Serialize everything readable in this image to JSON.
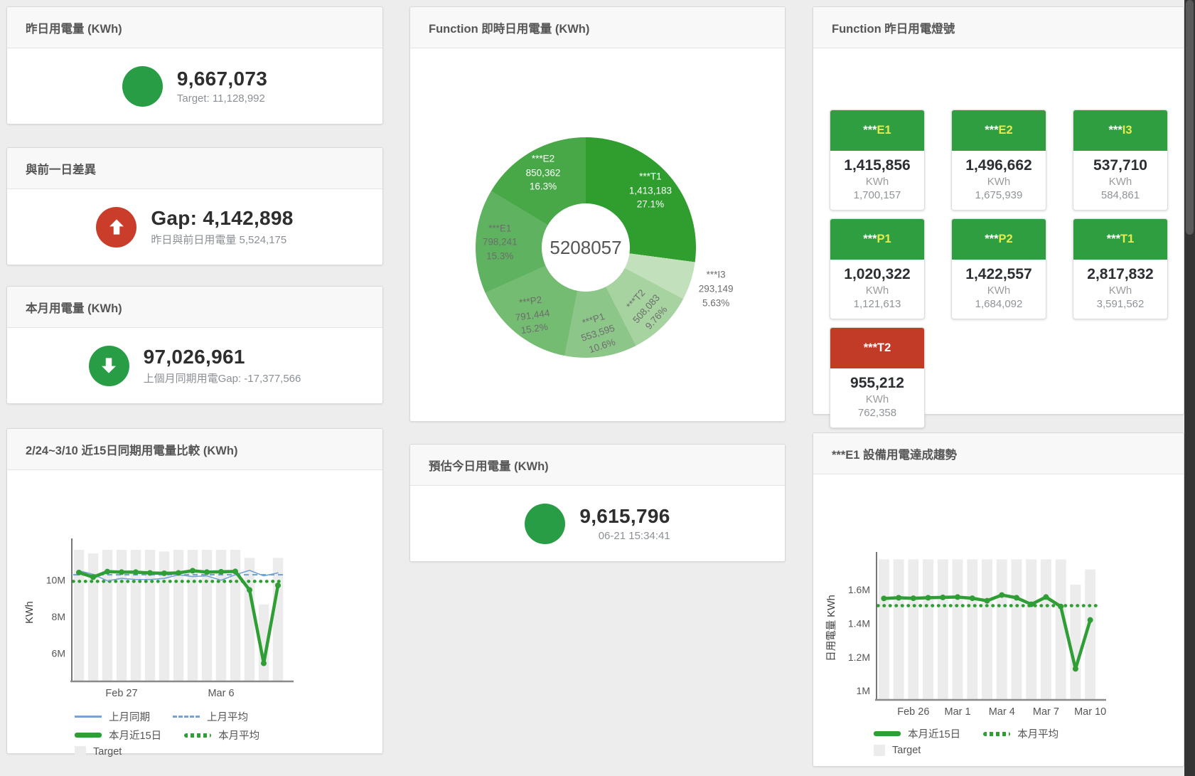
{
  "panels": {
    "yesterday": {
      "title": "昨日用電量 (KWh)",
      "value": "9,667,073",
      "subtitle": "Target: 11,128,992",
      "circle_color": "#299c46",
      "arrow": "none"
    },
    "day_gap": {
      "title": "與前一日差異",
      "value": "Gap: 4,142,898",
      "subtitle": "昨日與前日用電量 5,524,175",
      "circle_color": "#cb3d2b",
      "arrow": "up"
    },
    "month": {
      "title": "本月用電量 (KWh)",
      "value": "97,026,961",
      "subtitle": "上個月同期用電Gap: -17,377,566",
      "circle_color": "#299c46",
      "arrow": "down"
    },
    "estimate": {
      "title": "預估今日用電量 (KWh)",
      "value": "9,615,796",
      "subtitle": "06-21 15:34:41",
      "circle_color": "#299c46",
      "arrow": "none"
    },
    "realtime_donut": {
      "title": "Function 即時日用電量 (KWh)"
    },
    "lights": {
      "title": "Function 昨日用電燈號",
      "tiles": [
        {
          "stars": "***",
          "code": "E1",
          "value": "1,415,856",
          "unit": "KWh",
          "target": "1,700,157",
          "header_color": "#2f9e41",
          "code_color": "#e3ec4f"
        },
        {
          "stars": "***",
          "code": "E2",
          "value": "1,496,662",
          "unit": "KWh",
          "target": "1,675,939",
          "header_color": "#2f9e41",
          "code_color": "#e3ec4f"
        },
        {
          "stars": "***",
          "code": "I3",
          "value": "537,710",
          "unit": "KWh",
          "target": "584,861",
          "header_color": "#2f9e41",
          "code_color": "#e3ec4f"
        },
        {
          "stars": "***",
          "code": "P1",
          "value": "1,020,322",
          "unit": "KWh",
          "target": "1,121,613",
          "header_color": "#2f9e41",
          "code_color": "#e3ec4f"
        },
        {
          "stars": "***",
          "code": "P2",
          "value": "1,422,557",
          "unit": "KWh",
          "target": "1,684,092",
          "header_color": "#2f9e41",
          "code_color": "#e3ec4f"
        },
        {
          "stars": "***",
          "code": "T1",
          "value": "2,817,832",
          "unit": "KWh",
          "target": "3,591,562",
          "header_color": "#2f9e41",
          "code_color": "#e3ec4f"
        },
        {
          "stars": "***",
          "code": "T2",
          "value": "955,212",
          "unit": "KWh",
          "target": "762,358",
          "header_color": "#c23b27",
          "code_color": "#ffffff"
        }
      ]
    },
    "compare": {
      "title": "2/24~3/10 近15日同期用電量比較 (KWh)"
    },
    "trend": {
      "title": "***E1 設備用電達成趨勢"
    }
  },
  "chart_data": [
    {
      "id": "donut",
      "type": "pie",
      "title": "Function 即時日用電量 (KWh)",
      "center_total": "5208057",
      "slices": [
        {
          "label": "***T1",
          "value": 1413183,
          "value_label": "1,413,183",
          "pct": 27.1,
          "pct_label": "27.1%",
          "color": "#2f9e2f",
          "text": "#ffffff"
        },
        {
          "label": "***I3",
          "value": 293149,
          "value_label": "293,149",
          "pct": 5.63,
          "pct_label": "5.63%",
          "color": "#c2e0bb",
          "text": "#6d6d6d",
          "outside": true
        },
        {
          "label": "***T2",
          "value": 508083,
          "value_label": "508,083",
          "pct": 9.76,
          "pct_label": "9.76%",
          "color": "#a6d3a0",
          "text": "#6d6d6d",
          "rotate": -48
        },
        {
          "label": "***P1",
          "value": 553595,
          "value_label": "553,595",
          "pct": 10.6,
          "pct_label": "10.6%",
          "color": "#8cc789",
          "text": "#6d6d6d",
          "rotate": -18
        },
        {
          "label": "***P2",
          "value": 791444,
          "value_label": "791,444",
          "pct": 15.2,
          "pct_label": "15.2%",
          "color": "#74bc72",
          "text": "#6d6d6d",
          "rotate": -8
        },
        {
          "label": "***E1",
          "value": 798241,
          "value_label": "798,241",
          "pct": 15.3,
          "pct_label": "15.3%",
          "color": "#5fb25f",
          "text": "#6d6d6d"
        },
        {
          "label": "***E2",
          "value": 850362,
          "value_label": "850,362",
          "pct": 16.3,
          "pct_label": "16.3%",
          "color": "#48a848",
          "text": "#ffffff"
        }
      ]
    },
    {
      "id": "compare",
      "type": "line",
      "title": "2/24~3/10 近15日同期用電量比較 (KWh)",
      "ylabel": "KWh",
      "ylim": [
        4.5,
        11.95
      ],
      "yticks": [
        {
          "v": 6,
          "label": "6M"
        },
        {
          "v": 8,
          "label": "8M"
        },
        {
          "v": 10,
          "label": "10M"
        }
      ],
      "xticks": [
        {
          "i": 3,
          "label": "Feb 27"
        },
        {
          "i": 10,
          "label": "Mar 6"
        }
      ],
      "target_bars": {
        "name": "Target",
        "color": "#ececec",
        "values": [
          11.64,
          11.44,
          11.64,
          11.64,
          11.64,
          11.64,
          11.55,
          11.64,
          11.64,
          11.64,
          11.64,
          11.64,
          11.2,
          8.66,
          11.2
        ]
      },
      "series": [
        {
          "name": "上月同期",
          "color": "#76a3d4",
          "width": 1.6,
          "values": [
            10.5,
            10.3,
            9.95,
            10.08,
            10.02,
            10.02,
            10.08,
            10.28,
            10.18,
            10.22,
            9.98,
            10.28,
            10.52,
            10.22,
            10.38
          ]
        },
        {
          "name": "本月近15日",
          "color": "#2f9e35",
          "width": 4.5,
          "markers": true,
          "values": [
            10.4,
            10.15,
            10.45,
            10.42,
            10.42,
            10.38,
            10.36,
            10.38,
            10.5,
            10.42,
            10.44,
            10.46,
            9.45,
            5.45,
            9.7
          ]
        }
      ],
      "hlines": [
        {
          "name": "上月平均",
          "color": "#76a3d4",
          "style": "dashed",
          "v": 10.28
        },
        {
          "name": "本月平均",
          "color": "#2f9e35",
          "style": "dotted",
          "v": 9.92
        }
      ],
      "legend_rows": [
        [
          {
            "label": "上月同期",
            "swatch": "line",
            "color": "#76a3d4"
          },
          {
            "label": "上月平均",
            "swatch": "dashed",
            "color": "#76a3d4"
          }
        ],
        [
          {
            "label": "本月近15日",
            "swatch": "thick",
            "color": "#2f9e35"
          },
          {
            "label": "本月平均",
            "swatch": "dotted",
            "color": "#2f9e35"
          }
        ],
        [
          {
            "label": "Target",
            "swatch": "box",
            "color": "#ececec"
          }
        ]
      ]
    },
    {
      "id": "trend",
      "type": "line",
      "title": "***E1 設備用電達成趨勢",
      "ylabel": "日用電量 KWh",
      "ylim": [
        0.95,
        1.79
      ],
      "yticks": [
        {
          "v": 1,
          "label": "1M"
        },
        {
          "v": 1.2,
          "label": "1.2M"
        },
        {
          "v": 1.4,
          "label": "1.4M"
        },
        {
          "v": 1.6,
          "label": "1.6M"
        }
      ],
      "xticks": [
        {
          "i": 2,
          "label": "Feb 26"
        },
        {
          "i": 5,
          "label": "Mar 1"
        },
        {
          "i": 8,
          "label": "Mar 4"
        },
        {
          "i": 11,
          "label": "Mar 7"
        },
        {
          "i": 14,
          "label": "Mar 10"
        }
      ],
      "target_bars": {
        "name": "Target",
        "color": "#ececec",
        "values": [
          1.78,
          1.78,
          1.78,
          1.78,
          1.78,
          1.78,
          1.78,
          1.78,
          1.78,
          1.78,
          1.78,
          1.78,
          1.78,
          1.63,
          1.72
        ]
      },
      "series": [
        {
          "name": "本月近15日",
          "color": "#2f9e35",
          "width": 4.5,
          "markers": true,
          "values": [
            1.548,
            1.552,
            1.549,
            1.552,
            1.554,
            1.556,
            1.549,
            1.534,
            1.568,
            1.552,
            1.513,
            1.556,
            1.5,
            1.13,
            1.42
          ]
        }
      ],
      "hlines": [
        {
          "name": "本月平均",
          "color": "#2f9e35",
          "style": "dotted",
          "v": 1.505
        }
      ],
      "legend_rows": [
        [
          {
            "label": "本月近15日",
            "swatch": "thick",
            "color": "#2f9e35"
          },
          {
            "label": "本月平均",
            "swatch": "dotted",
            "color": "#2f9e35"
          }
        ],
        [
          {
            "label": "Target",
            "swatch": "box",
            "color": "#ececec"
          }
        ]
      ]
    }
  ]
}
